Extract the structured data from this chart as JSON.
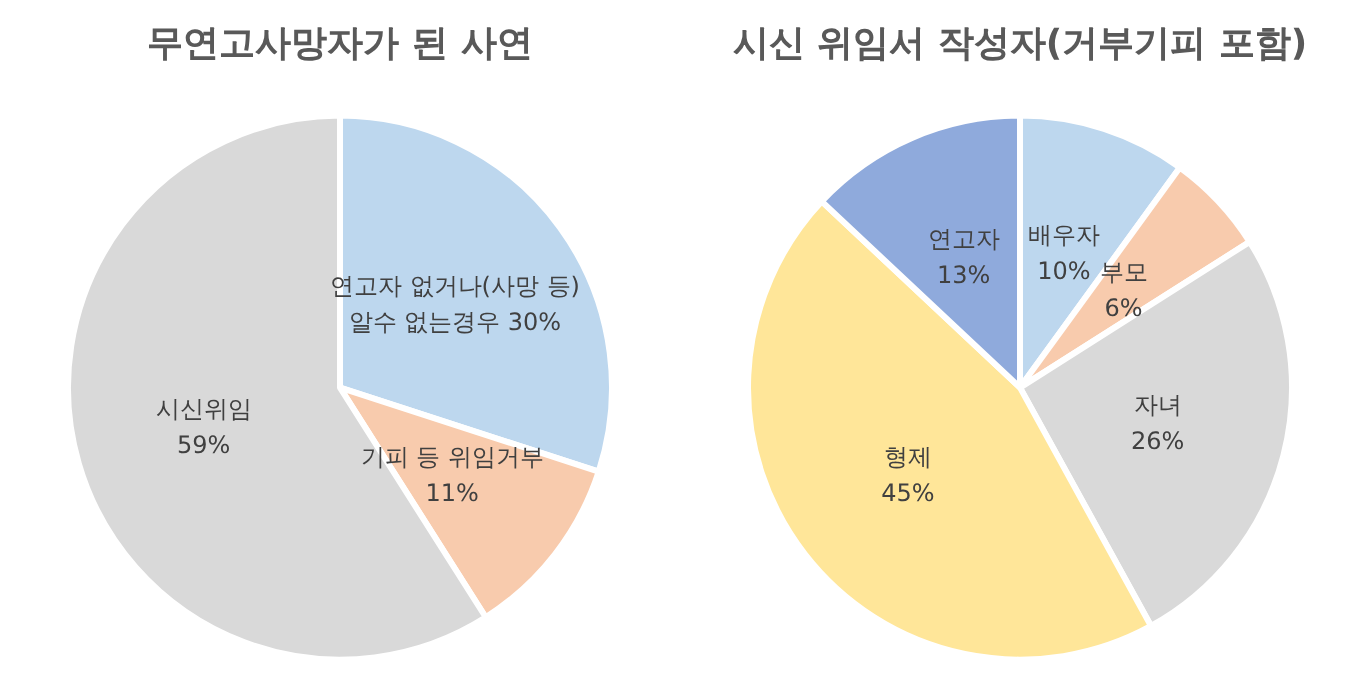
{
  "chart_data": [
    {
      "type": "pie",
      "title": "무연고사망자가 된 사연",
      "categories": [
        "연고자 없거나(사망 등)\n알수 없는경우",
        "기피 등 위임거부",
        "시신위임"
      ],
      "values": [
        30,
        11,
        59
      ],
      "colors": [
        "#bdd7ee",
        "#f8cbad",
        "#d9d9d9"
      ],
      "value_labels": [
        "30%",
        "11%",
        "59%"
      ],
      "legend": false
    },
    {
      "type": "pie",
      "title": "시신 위임서 작성자(거부기피 포함)",
      "categories": [
        "배우자",
        "부모",
        "자녀",
        "형제",
        "연고자"
      ],
      "values": [
        10,
        6,
        26,
        45,
        13
      ],
      "colors": [
        "#bdd7ee",
        "#f8cbad",
        "#d9d9d9",
        "#ffe699",
        "#8faadc"
      ],
      "value_labels": [
        "10%",
        "6%",
        "26%",
        "45%",
        "13%"
      ],
      "legend": false
    }
  ]
}
